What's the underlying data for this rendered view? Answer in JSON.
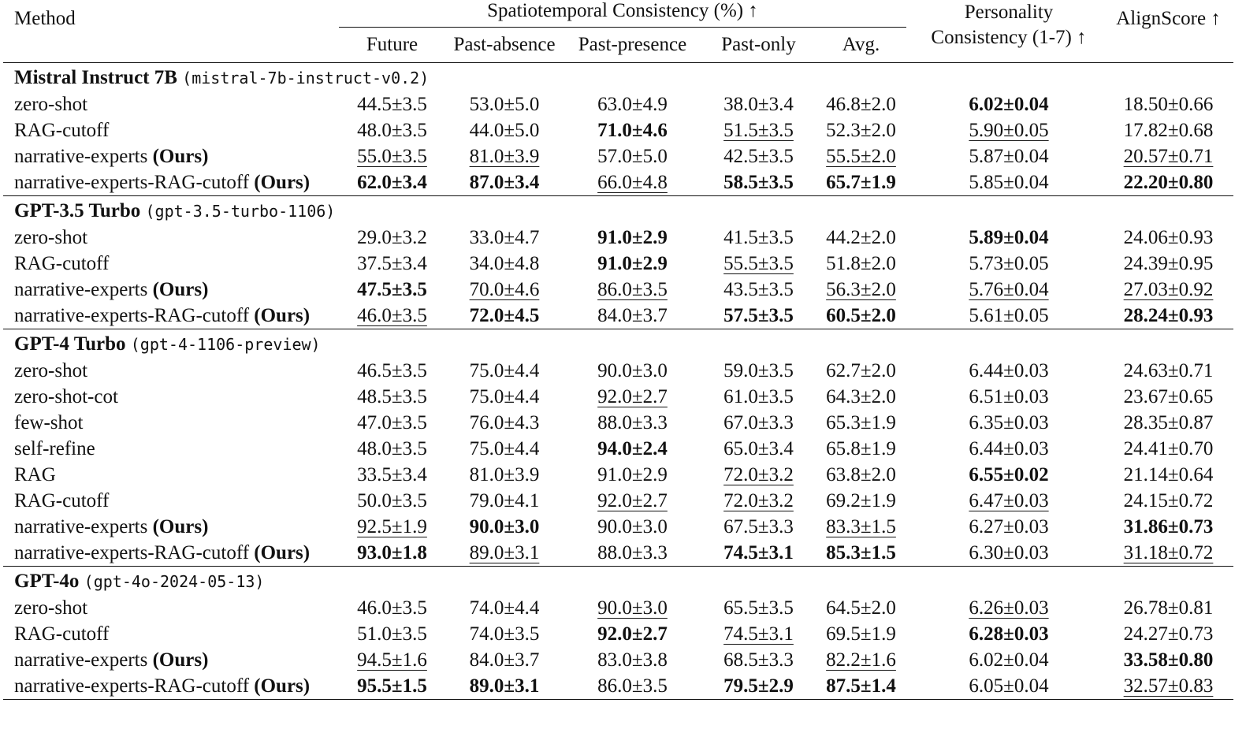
{
  "header": {
    "method": "Method",
    "spatio": "Spatiotemporal Consistency (%) ↑",
    "cols": [
      "Future",
      "Past-absence",
      "Past-presence",
      "Past-only",
      "Avg."
    ],
    "personality_1": "Personality",
    "personality_2": "Consistency (1-7) ↑",
    "align": "AlignScore ↑"
  },
  "ours_label": "(Ours)",
  "groups": [
    {
      "name": "Mistral Instruct 7B",
      "model_id": "(mistral-7b-instruct-v0.2)",
      "rows": [
        {
          "method": "zero-shot",
          "ours": false,
          "cells": [
            "44.5±3.5",
            "53.0±5.0",
            "63.0±4.9",
            "38.0±3.4",
            "46.8±2.0",
            {
              "v": "6.02±0.04",
              "s": "b"
            },
            "18.50±0.66"
          ]
        },
        {
          "method": "RAG-cutoff",
          "ours": false,
          "cells": [
            "48.0±3.5",
            "44.0±5.0",
            {
              "v": "71.0±4.6",
              "s": "b"
            },
            {
              "v": "51.5±3.5",
              "s": "u"
            },
            "52.3±2.0",
            {
              "v": "5.90±0.05",
              "s": "u"
            },
            "17.82±0.68"
          ]
        },
        {
          "method": "narrative-experts",
          "ours": true,
          "cells": [
            {
              "v": "55.0±3.5",
              "s": "u"
            },
            {
              "v": "81.0±3.9",
              "s": "u"
            },
            "57.0±5.0",
            "42.5±3.5",
            {
              "v": "55.5±2.0",
              "s": "u"
            },
            "5.87±0.04",
            {
              "v": "20.57±0.71",
              "s": "u"
            }
          ]
        },
        {
          "method": "narrative-experts-RAG-cutoff",
          "ours": true,
          "cells": [
            {
              "v": "62.0±3.4",
              "s": "b"
            },
            {
              "v": "87.0±3.4",
              "s": "b"
            },
            {
              "v": "66.0±4.8",
              "s": "u"
            },
            {
              "v": "58.5±3.5",
              "s": "b"
            },
            {
              "v": "65.7±1.9",
              "s": "b"
            },
            "5.85±0.04",
            {
              "v": "22.20±0.80",
              "s": "b"
            }
          ]
        }
      ]
    },
    {
      "name": "GPT-3.5 Turbo",
      "model_id": "(gpt-3.5-turbo-1106)",
      "rows": [
        {
          "method": "zero-shot",
          "ours": false,
          "cells": [
            "29.0±3.2",
            "33.0±4.7",
            {
              "v": "91.0±2.9",
              "s": "b"
            },
            "41.5±3.5",
            "44.2±2.0",
            {
              "v": "5.89±0.04",
              "s": "b"
            },
            "24.06±0.93"
          ]
        },
        {
          "method": "RAG-cutoff",
          "ours": false,
          "cells": [
            "37.5±3.4",
            "34.0±4.8",
            {
              "v": "91.0±2.9",
              "s": "b"
            },
            {
              "v": "55.5±3.5",
              "s": "u"
            },
            "51.8±2.0",
            "5.73±0.05",
            "24.39±0.95"
          ]
        },
        {
          "method": "narrative-experts",
          "ours": true,
          "cells": [
            {
              "v": "47.5±3.5",
              "s": "b"
            },
            {
              "v": "70.0±4.6",
              "s": "u"
            },
            {
              "v": "86.0±3.5",
              "s": "u"
            },
            "43.5±3.5",
            {
              "v": "56.3±2.0",
              "s": "u"
            },
            {
              "v": "5.76±0.04",
              "s": "u"
            },
            {
              "v": "27.03±0.92",
              "s": "u"
            }
          ]
        },
        {
          "method": "narrative-experts-RAG-cutoff",
          "ours": true,
          "cells": [
            {
              "v": "46.0±3.5",
              "s": "u"
            },
            {
              "v": "72.0±4.5",
              "s": "b"
            },
            "84.0±3.7",
            {
              "v": "57.5±3.5",
              "s": "b"
            },
            {
              "v": "60.5±2.0",
              "s": "b"
            },
            "5.61±0.05",
            {
              "v": "28.24±0.93",
              "s": "b"
            }
          ]
        }
      ]
    },
    {
      "name": "GPT-4 Turbo",
      "model_id": "(gpt-4-1106-preview)",
      "rows": [
        {
          "method": "zero-shot",
          "ours": false,
          "cells": [
            "46.5±3.5",
            "75.0±4.4",
            "90.0±3.0",
            "59.0±3.5",
            "62.7±2.0",
            "6.44±0.03",
            "24.63±0.71"
          ]
        },
        {
          "method": "zero-shot-cot",
          "ours": false,
          "cells": [
            "48.5±3.5",
            "75.0±4.4",
            {
              "v": "92.0±2.7",
              "s": "u"
            },
            "61.0±3.5",
            "64.3±2.0",
            "6.51±0.03",
            "23.67±0.65"
          ]
        },
        {
          "method": "few-shot",
          "ours": false,
          "cells": [
            "47.0±3.5",
            "76.0±4.3",
            "88.0±3.3",
            "67.0±3.3",
            "65.3±1.9",
            "6.35±0.03",
            "28.35±0.87"
          ]
        },
        {
          "method": "self-refine",
          "ours": false,
          "cells": [
            "48.0±3.5",
            "75.0±4.4",
            {
              "v": "94.0±2.4",
              "s": "b"
            },
            "65.0±3.4",
            "65.8±1.9",
            "6.44±0.03",
            "24.41±0.70"
          ]
        },
        {
          "method": "RAG",
          "ours": false,
          "cells": [
            "33.5±3.4",
            "81.0±3.9",
            "91.0±2.9",
            {
              "v": "72.0±3.2",
              "s": "u"
            },
            "63.8±2.0",
            {
              "v": "6.55±0.02",
              "s": "b"
            },
            "21.14±0.64"
          ]
        },
        {
          "method": "RAG-cutoff",
          "ours": false,
          "cells": [
            "50.0±3.5",
            "79.0±4.1",
            {
              "v": "92.0±2.7",
              "s": "u"
            },
            {
              "v": "72.0±3.2",
              "s": "u"
            },
            "69.2±1.9",
            {
              "v": "6.47±0.03",
              "s": "u"
            },
            "24.15±0.72"
          ]
        },
        {
          "method": "narrative-experts",
          "ours": true,
          "cells": [
            {
              "v": "92.5±1.9",
              "s": "u"
            },
            {
              "v": "90.0±3.0",
              "s": "b"
            },
            "90.0±3.0",
            "67.5±3.3",
            {
              "v": "83.3±1.5",
              "s": "u"
            },
            "6.27±0.03",
            {
              "v": "31.86±0.73",
              "s": "b"
            }
          ]
        },
        {
          "method": "narrative-experts-RAG-cutoff",
          "ours": true,
          "cells": [
            {
              "v": "93.0±1.8",
              "s": "b"
            },
            {
              "v": "89.0±3.1",
              "s": "u"
            },
            "88.0±3.3",
            {
              "v": "74.5±3.1",
              "s": "b"
            },
            {
              "v": "85.3±1.5",
              "s": "b"
            },
            "6.30±0.03",
            {
              "v": "31.18±0.72",
              "s": "u"
            }
          ]
        }
      ]
    },
    {
      "name": "GPT-4o",
      "model_id": "(gpt-4o-2024-05-13)",
      "rows": [
        {
          "method": "zero-shot",
          "ours": false,
          "cells": [
            "46.0±3.5",
            "74.0±4.4",
            {
              "v": "90.0±3.0",
              "s": "u"
            },
            "65.5±3.5",
            "64.5±2.0",
            {
              "v": "6.26±0.03",
              "s": "u"
            },
            "26.78±0.81"
          ]
        },
        {
          "method": "RAG-cutoff",
          "ours": false,
          "cells": [
            "51.0±3.5",
            "74.0±3.5",
            {
              "v": "92.0±2.7",
              "s": "b"
            },
            {
              "v": "74.5±3.1",
              "s": "u"
            },
            "69.5±1.9",
            {
              "v": "6.28±0.03",
              "s": "b"
            },
            "24.27±0.73"
          ]
        },
        {
          "method": "narrative-experts",
          "ours": true,
          "cells": [
            {
              "v": "94.5±1.6",
              "s": "u"
            },
            "84.0±3.7",
            "83.0±3.8",
            "68.5±3.3",
            {
              "v": "82.2±1.6",
              "s": "u"
            },
            "6.02±0.04",
            {
              "v": "33.58±0.80",
              "s": "b"
            }
          ]
        },
        {
          "method": "narrative-experts-RAG-cutoff",
          "ours": true,
          "cells": [
            {
              "v": "95.5±1.5",
              "s": "b"
            },
            {
              "v": "89.0±3.1",
              "s": "b"
            },
            "86.0±3.5",
            {
              "v": "79.5±2.9",
              "s": "b"
            },
            {
              "v": "87.5±1.4",
              "s": "b"
            },
            "6.05±0.04",
            {
              "v": "32.57±0.83",
              "s": "u"
            }
          ]
        }
      ]
    }
  ]
}
